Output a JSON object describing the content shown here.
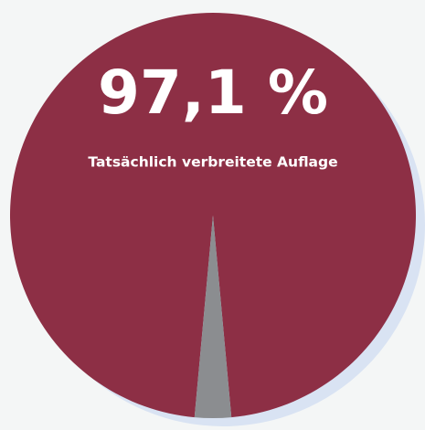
{
  "chart_data": {
    "type": "pie",
    "categories": [
      "Tatsächlich verbreitete Auflage",
      null
    ],
    "values": [
      97.1,
      2.9
    ],
    "value_labels": [
      "97,1 %",
      null
    ],
    "colors": [
      "#8d2f45",
      "#8b8d90"
    ]
  }
}
